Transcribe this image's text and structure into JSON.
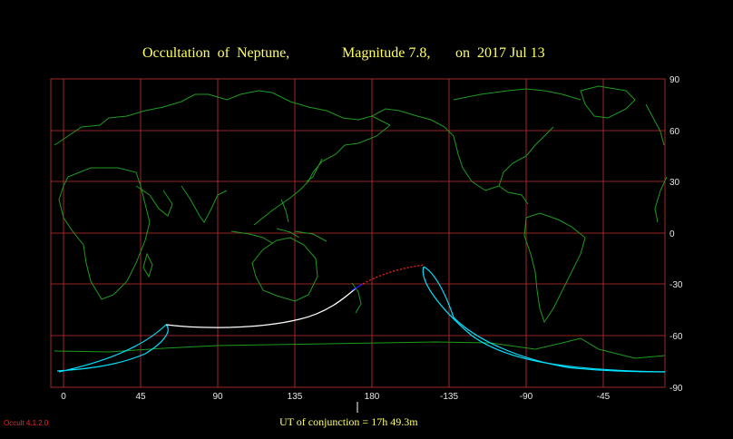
{
  "title": {
    "object": "Occultation  of  Neptune,",
    "magnitude": "Magnitude 7.8,",
    "date": "on  2017 Jul 13"
  },
  "axes": {
    "lon_ticks": [
      "0",
      "45",
      "90",
      "135",
      "180",
      "-135",
      "-90",
      "-45"
    ],
    "lat_ticks": [
      "90",
      "60",
      "30",
      "0",
      "-30",
      "-60",
      "-90"
    ]
  },
  "conjunction_label": "UT of conjunction = 17h 49.3m",
  "version_label": "Occult 4.1.2.0",
  "colors": {
    "background": "#000000",
    "grid": "#c83232",
    "coastline": "#1f9a1f",
    "border": "#a02828",
    "title": "#ffff66",
    "visibility_limit": "#00e0ff",
    "central_path_day": "#ffffff",
    "central_path_twilight": "#2020ff",
    "central_path_below_horizon": "#ff2020",
    "conjunction_tick": "#ffffff"
  }
}
